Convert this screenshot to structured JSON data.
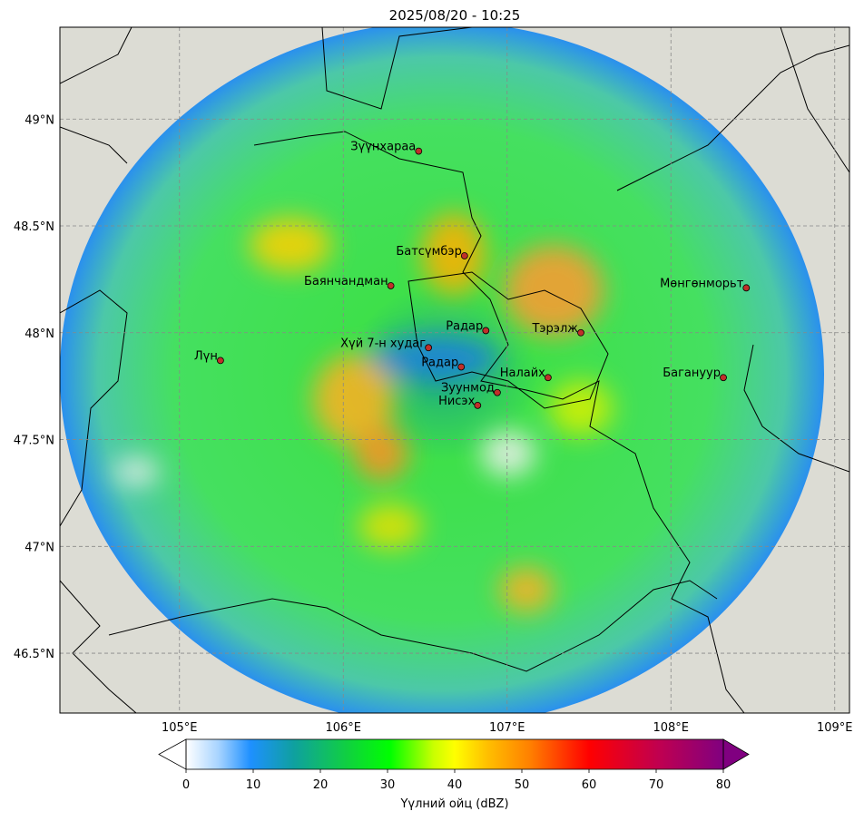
{
  "map": {
    "title": "2025/08/20 - 10:25",
    "lonlim": [
      104.27,
      109.09
    ],
    "latlim": [
      46.22,
      49.43
    ],
    "lonticks": [
      {
        "value": 105,
        "label": "105°E"
      },
      {
        "value": 106,
        "label": "106°E"
      },
      {
        "value": 107,
        "label": "107°E"
      },
      {
        "value": 108,
        "label": "108°E"
      },
      {
        "value": 109,
        "label": "109°E"
      }
    ],
    "latticks": [
      {
        "value": 46.5,
        "label": "46.5°N"
      },
      {
        "value": 47,
        "label": "47°N"
      },
      {
        "value": 47.5,
        "label": "47.5°N"
      },
      {
        "value": 48,
        "label": "48°N"
      },
      {
        "value": 48.5,
        "label": "48.5°N"
      },
      {
        "value": 49,
        "label": "49°N"
      }
    ],
    "grid": true,
    "cities": [
      {
        "name": "Зүүнхараа",
        "lon": 106.46,
        "lat": 48.85
      },
      {
        "name": "Батсүмбэр",
        "lon": 106.74,
        "lat": 48.36
      },
      {
        "name": "Баянчандман",
        "lon": 106.29,
        "lat": 48.22
      },
      {
        "name": "Радар",
        "lon": 106.87,
        "lat": 48.01
      },
      {
        "name": "Тэрэлж",
        "lon": 107.45,
        "lat": 48.0
      },
      {
        "name": "Хүй 7-н худаг",
        "lon": 106.52,
        "lat": 47.93
      },
      {
        "name": "Лүн",
        "lon": 105.25,
        "lat": 47.87
      },
      {
        "name": "Радар",
        "lon": 106.72,
        "lat": 47.84
      },
      {
        "name": "Налайх",
        "lon": 107.25,
        "lat": 47.79
      },
      {
        "name": "Зуунмод",
        "lon": 106.94,
        "lat": 47.72
      },
      {
        "name": "Нисэх",
        "lon": 106.82,
        "lat": 47.66
      },
      {
        "name": "Мөнгөнморьт",
        "lon": 108.46,
        "lat": 48.21
      },
      {
        "name": "Багануур",
        "lon": 108.32,
        "lat": 47.79
      }
    ],
    "colorbar": {
      "label": "Үүлний ойц (dBZ)",
      "lim": [
        0,
        80
      ],
      "ticks": [
        0,
        10,
        20,
        30,
        40,
        50,
        60,
        70,
        80
      ]
    }
  }
}
